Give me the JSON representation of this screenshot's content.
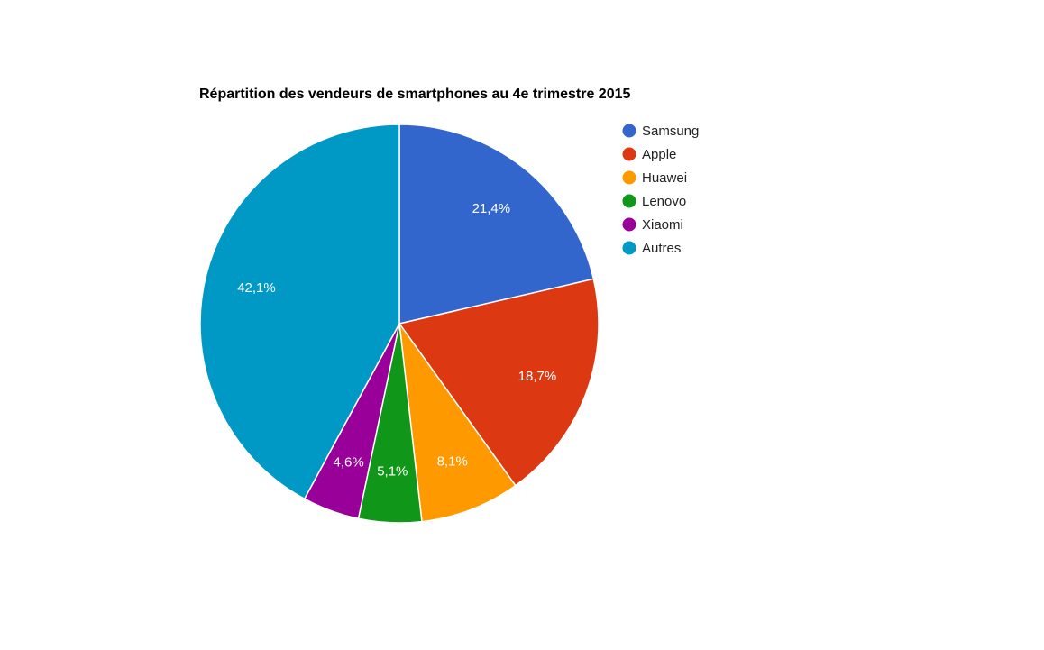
{
  "chart_data": {
    "type": "pie",
    "title": "Répartition des vendeurs de smartphones au 4e trimestre 2015",
    "legend_position": "right",
    "start_angle": "12 o'clock, clockwise",
    "slices": [
      {
        "label": "Samsung",
        "value": 21.4,
        "display": "21,4%",
        "color": "#3366cc"
      },
      {
        "label": "Apple",
        "value": 18.7,
        "display": "18,7%",
        "color": "#dc3912"
      },
      {
        "label": "Huawei",
        "value": 8.1,
        "display": "8,1%",
        "color": "#ff9900"
      },
      {
        "label": "Lenovo",
        "value": 5.1,
        "display": "5,1%",
        "color": "#109618"
      },
      {
        "label": "Xiaomi",
        "value": 4.6,
        "display": "4,6%",
        "color": "#990099"
      },
      {
        "label": "Autres",
        "value": 42.1,
        "display": "42,1%",
        "color": "#0099c6"
      }
    ]
  }
}
